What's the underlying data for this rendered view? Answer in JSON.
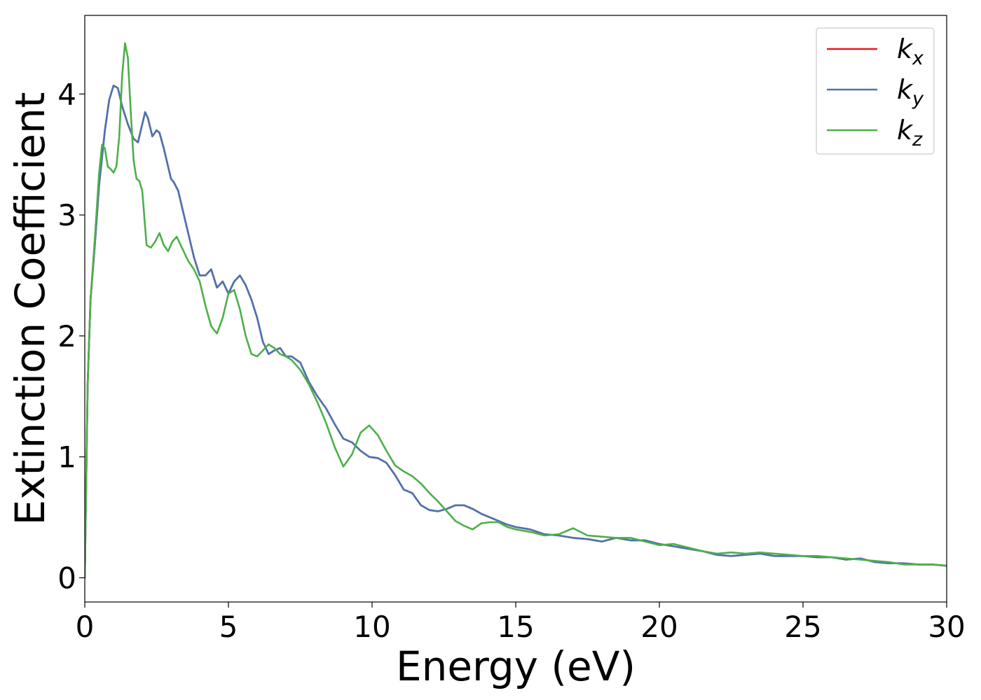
{
  "chart_data": {
    "type": "line",
    "xlabel": "Energy (eV)",
    "ylabel": "Extinction Coefficient",
    "xlim": [
      0,
      30
    ],
    "ylim": [
      -0.2,
      4.65
    ],
    "xticks": [
      0,
      5,
      10,
      15,
      20,
      25,
      30
    ],
    "yticks": [
      0,
      1,
      2,
      3,
      4
    ],
    "grid": false,
    "legend_position": "top-right",
    "series": [
      {
        "name": "k_x",
        "label_base": "k",
        "label_sub": "x",
        "color": "#e41a1c",
        "x": [
          0,
          0.1,
          0.2,
          0.35,
          0.5,
          0.7,
          0.85,
          1.0,
          1.15,
          1.3,
          1.5,
          1.7,
          1.85,
          2.0,
          2.1,
          2.2,
          2.35,
          2.5,
          2.6,
          2.75,
          2.9,
          3.0,
          3.1,
          3.25,
          3.4,
          3.6,
          3.8,
          4.0,
          4.2,
          4.4,
          4.6,
          4.8,
          5.0,
          5.2,
          5.4,
          5.6,
          5.8,
          6.0,
          6.2,
          6.4,
          6.6,
          6.8,
          7.0,
          7.2,
          7.5,
          7.8,
          8.1,
          8.4,
          8.7,
          9.0,
          9.3,
          9.6,
          9.9,
          10.2,
          10.5,
          10.8,
          11.1,
          11.4,
          11.7,
          12.0,
          12.3,
          12.6,
          12.9,
          13.2,
          13.5,
          13.8,
          14.1,
          14.4,
          14.7,
          15.0,
          15.5,
          16.0,
          16.5,
          17.0,
          17.5,
          18.0,
          18.5,
          19.0,
          19.5,
          20.0,
          20.5,
          21.0,
          21.5,
          22.0,
          22.5,
          23.0,
          23.5,
          24.0,
          24.5,
          25.0,
          25.5,
          26.0,
          26.5,
          27.0,
          27.5,
          28.0,
          28.5,
          29.0,
          29.5,
          30.0
        ],
        "y": [
          0,
          1.6,
          2.3,
          2.75,
          3.25,
          3.7,
          3.95,
          4.07,
          4.05,
          3.9,
          3.75,
          3.63,
          3.6,
          3.75,
          3.85,
          3.8,
          3.65,
          3.7,
          3.68,
          3.55,
          3.4,
          3.3,
          3.27,
          3.2,
          3.05,
          2.85,
          2.65,
          2.5,
          2.5,
          2.55,
          2.4,
          2.45,
          2.35,
          2.45,
          2.5,
          2.42,
          2.3,
          2.15,
          1.95,
          1.85,
          1.88,
          1.9,
          1.83,
          1.83,
          1.78,
          1.62,
          1.5,
          1.4,
          1.27,
          1.15,
          1.12,
          1.05,
          1.0,
          0.99,
          0.95,
          0.85,
          0.73,
          0.7,
          0.6,
          0.56,
          0.55,
          0.57,
          0.6,
          0.6,
          0.57,
          0.53,
          0.5,
          0.47,
          0.44,
          0.42,
          0.4,
          0.36,
          0.35,
          0.33,
          0.32,
          0.3,
          0.33,
          0.31,
          0.31,
          0.28,
          0.26,
          0.24,
          0.22,
          0.19,
          0.18,
          0.19,
          0.2,
          0.18,
          0.18,
          0.18,
          0.17,
          0.17,
          0.15,
          0.16,
          0.13,
          0.12,
          0.12,
          0.11,
          0.11,
          0.1
        ]
      },
      {
        "name": "k_y",
        "label_base": "k",
        "label_sub": "y",
        "color": "#4a74b0",
        "x": [
          0,
          0.1,
          0.2,
          0.35,
          0.5,
          0.7,
          0.85,
          1.0,
          1.15,
          1.3,
          1.5,
          1.7,
          1.85,
          2.0,
          2.1,
          2.2,
          2.35,
          2.5,
          2.6,
          2.75,
          2.9,
          3.0,
          3.1,
          3.25,
          3.4,
          3.6,
          3.8,
          4.0,
          4.2,
          4.4,
          4.6,
          4.8,
          5.0,
          5.2,
          5.4,
          5.6,
          5.8,
          6.0,
          6.2,
          6.4,
          6.6,
          6.8,
          7.0,
          7.2,
          7.5,
          7.8,
          8.1,
          8.4,
          8.7,
          9.0,
          9.3,
          9.6,
          9.9,
          10.2,
          10.5,
          10.8,
          11.1,
          11.4,
          11.7,
          12.0,
          12.3,
          12.6,
          12.9,
          13.2,
          13.5,
          13.8,
          14.1,
          14.4,
          14.7,
          15.0,
          15.5,
          16.0,
          16.5,
          17.0,
          17.5,
          18.0,
          18.5,
          19.0,
          19.5,
          20.0,
          20.5,
          21.0,
          21.5,
          22.0,
          22.5,
          23.0,
          23.5,
          24.0,
          24.5,
          25.0,
          25.5,
          26.0,
          26.5,
          27.0,
          27.5,
          28.0,
          28.5,
          29.0,
          29.5,
          30.0
        ],
        "y": [
          0,
          1.6,
          2.3,
          2.75,
          3.25,
          3.7,
          3.95,
          4.07,
          4.05,
          3.9,
          3.75,
          3.63,
          3.6,
          3.75,
          3.85,
          3.8,
          3.65,
          3.7,
          3.68,
          3.55,
          3.4,
          3.3,
          3.27,
          3.2,
          3.05,
          2.85,
          2.65,
          2.5,
          2.5,
          2.55,
          2.4,
          2.45,
          2.35,
          2.45,
          2.5,
          2.42,
          2.3,
          2.15,
          1.95,
          1.85,
          1.88,
          1.9,
          1.83,
          1.83,
          1.78,
          1.62,
          1.5,
          1.4,
          1.27,
          1.15,
          1.12,
          1.05,
          1.0,
          0.99,
          0.95,
          0.85,
          0.73,
          0.7,
          0.6,
          0.56,
          0.55,
          0.57,
          0.6,
          0.6,
          0.57,
          0.53,
          0.5,
          0.47,
          0.44,
          0.42,
          0.4,
          0.36,
          0.35,
          0.33,
          0.32,
          0.3,
          0.33,
          0.31,
          0.31,
          0.28,
          0.26,
          0.24,
          0.22,
          0.19,
          0.18,
          0.19,
          0.2,
          0.18,
          0.18,
          0.18,
          0.17,
          0.17,
          0.15,
          0.16,
          0.13,
          0.12,
          0.12,
          0.11,
          0.11,
          0.1
        ]
      },
      {
        "name": "k_z",
        "label_base": "k",
        "label_sub": "z",
        "color": "#4daf4a",
        "x": [
          0,
          0.1,
          0.2,
          0.35,
          0.5,
          0.6,
          0.7,
          0.8,
          0.9,
          1.0,
          1.1,
          1.2,
          1.3,
          1.4,
          1.5,
          1.6,
          1.7,
          1.8,
          1.9,
          2.0,
          2.15,
          2.3,
          2.45,
          2.6,
          2.75,
          2.9,
          3.05,
          3.2,
          3.4,
          3.6,
          3.8,
          4.0,
          4.2,
          4.4,
          4.6,
          4.8,
          5.0,
          5.2,
          5.4,
          5.6,
          5.8,
          6.0,
          6.2,
          6.4,
          6.6,
          6.8,
          7.0,
          7.2,
          7.5,
          7.8,
          8.1,
          8.4,
          8.7,
          9.0,
          9.3,
          9.6,
          9.9,
          10.2,
          10.5,
          10.8,
          11.1,
          11.4,
          11.7,
          12.0,
          12.3,
          12.6,
          12.9,
          13.2,
          13.5,
          13.8,
          14.1,
          14.4,
          14.7,
          15.0,
          15.5,
          16.0,
          16.5,
          17.0,
          17.5,
          18.0,
          18.5,
          19.0,
          19.5,
          20.0,
          20.5,
          21.0,
          21.5,
          22.0,
          22.5,
          23.0,
          23.5,
          24.0,
          24.5,
          25.0,
          25.5,
          26.0,
          26.5,
          27.0,
          27.5,
          28.0,
          28.5,
          29.0,
          29.5,
          30.0
        ],
        "y": [
          0,
          1.6,
          2.3,
          2.8,
          3.35,
          3.58,
          3.55,
          3.4,
          3.38,
          3.35,
          3.4,
          3.65,
          4.15,
          4.42,
          4.3,
          3.85,
          3.45,
          3.3,
          3.28,
          3.2,
          2.75,
          2.73,
          2.78,
          2.85,
          2.75,
          2.7,
          2.78,
          2.82,
          2.72,
          2.62,
          2.55,
          2.45,
          2.25,
          2.08,
          2.02,
          2.15,
          2.35,
          2.38,
          2.22,
          2.0,
          1.85,
          1.83,
          1.88,
          1.93,
          1.9,
          1.85,
          1.83,
          1.8,
          1.72,
          1.6,
          1.45,
          1.28,
          1.08,
          0.92,
          1.02,
          1.2,
          1.26,
          1.18,
          1.05,
          0.93,
          0.88,
          0.84,
          0.78,
          0.7,
          0.63,
          0.55,
          0.47,
          0.43,
          0.4,
          0.45,
          0.46,
          0.46,
          0.42,
          0.4,
          0.38,
          0.35,
          0.36,
          0.41,
          0.35,
          0.34,
          0.33,
          0.33,
          0.3,
          0.27,
          0.28,
          0.25,
          0.22,
          0.2,
          0.21,
          0.2,
          0.21,
          0.2,
          0.19,
          0.18,
          0.18,
          0.17,
          0.16,
          0.15,
          0.14,
          0.13,
          0.11,
          0.11,
          0.11,
          0.1
        ]
      }
    ]
  }
}
